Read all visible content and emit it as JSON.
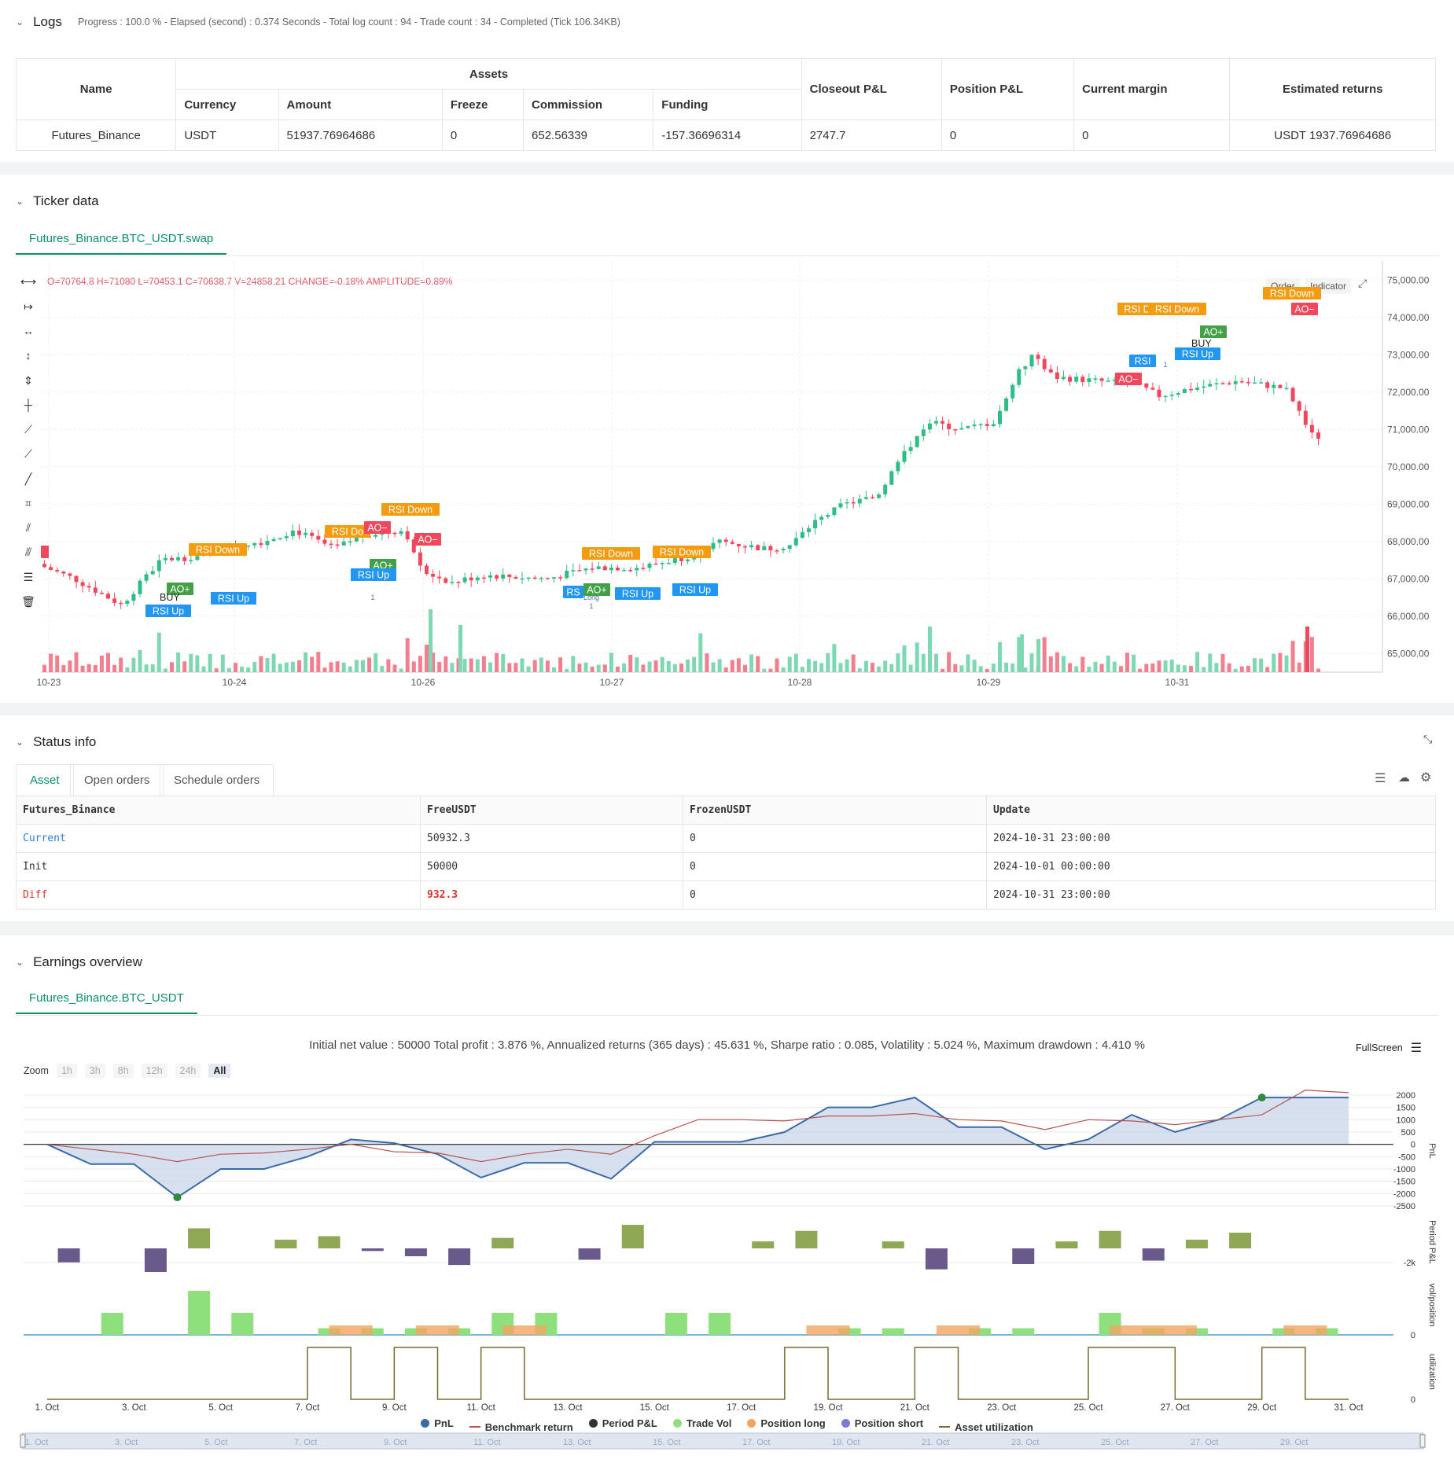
{
  "logs": {
    "title": "Logs",
    "summary": "Progress : 100.0 % - Elapsed (second) : 0.374  Seconds - Total log count : 94 - Trade count : 34 - Completed (Tick 106.34KB)",
    "table": {
      "headers": {
        "name": "Name",
        "assets": "Assets",
        "currency": "Currency",
        "amount": "Amount",
        "freeze": "Freeze",
        "commission": "Commission",
        "funding": "Funding",
        "closeout": "Closeout P&L",
        "position": "Position P&L",
        "margin": "Current margin",
        "returns": "Estimated returns"
      },
      "row": {
        "name": "Futures_Binance",
        "currency": "USDT",
        "amount": "51937.76964686",
        "freeze": "0",
        "commission": "652.56339",
        "funding": "-157.36696314",
        "closeout": "2747.7",
        "position": "0",
        "margin": "0",
        "returns": "USDT 1937.76964686"
      }
    }
  },
  "ticker": {
    "title": "Ticker data",
    "tab": "Futures_Binance.BTC_USDT.swap",
    "ohlc": "O=70764.8 H=71080 L=70453.1 C=70638.7 V=24858.21 CHANGE=-0.18% AMPLITUDE=0.89%",
    "buttons": {
      "order": "Order",
      "indicator": "Indicator"
    },
    "price_ticks": [
      "75,000.00",
      "74,000.00",
      "73,000.00",
      "72,000.00",
      "71,000.00",
      "70,000.00",
      "69,000.00",
      "68,000.00",
      "67,000.00",
      "66,000.00",
      "65,000.00"
    ],
    "date_ticks": [
      "10-23",
      "10-24",
      "10-26",
      "10-27",
      "10-28",
      "10-29",
      "10-31"
    ],
    "labels": {
      "rsi_down": "RSI Down",
      "rsi_up": "RSI Up",
      "ao_plus": "AO+",
      "ao_minus": "AO−",
      "buy": "BUY",
      "long": "Long",
      "one": "1",
      "rsi_d": "RSI D",
      "rsi_do": "RSI Do",
      "rsi_up_overlap": "RSI Up",
      "rs": "RS",
      "rsi": "RSI"
    }
  },
  "status": {
    "title": "Status info",
    "tabs": [
      "Asset",
      "Open orders",
      "Schedule orders"
    ],
    "headers": [
      "Futures_Binance",
      "FreeUSDT",
      "FrozenUSDT",
      "Update"
    ],
    "rows": [
      {
        "label": "Current",
        "free": "50932.3",
        "frozen": "0",
        "update": "2024-10-31 23:00:00"
      },
      {
        "label": "Init",
        "free": "50000",
        "frozen": "0",
        "update": "2024-10-01 00:00:00"
      },
      {
        "label": "Diff",
        "free": "932.3",
        "frozen": "0",
        "update": "2024-10-31 23:00:00"
      }
    ]
  },
  "earnings": {
    "title": "Earnings overview",
    "tab": "Futures_Binance.BTC_USDT",
    "summary": "Initial net value : 50000 Total profit : 3.876 %, Annualized returns (365 days) : 45.631 %, Sharpe ratio : 0.085, Volatility : 5.024 %, Maximum drawdown : 4.410 %",
    "fullscreen": "FullScreen",
    "zoom_label": "Zoom",
    "zoom_options": [
      "1h",
      "3h",
      "8h",
      "12h",
      "24h",
      "All"
    ],
    "pnl_ticks": [
      "2000",
      "1500",
      "1000",
      "500",
      "0",
      "-500",
      "-1000",
      "-1500",
      "-2000",
      "-2500"
    ],
    "axis_titles": {
      "pnl": "PnL",
      "period": "Period P&L",
      "vol": "vol/position",
      "util": "utilization"
    },
    "period_tick": "-2k",
    "vol_tick": "0",
    "util_tick": "0",
    "date_ticks": [
      "1. Oct",
      "3. Oct",
      "5. Oct",
      "7. Oct",
      "9. Oct",
      "11. Oct",
      "13. Oct",
      "15. Oct",
      "17. Oct",
      "19. Oct",
      "21. Oct",
      "23. Oct",
      "25. Oct",
      "27. Oct",
      "29. Oct",
      "31. Oct"
    ],
    "nav_ticks": [
      "1. Oct",
      "3. Oct",
      "5. Oct",
      "7. Oct",
      "9. Oct",
      "11. Oct",
      "13. Oct",
      "15. Oct",
      "17. Oct",
      "19. Oct",
      "21. Oct",
      "23. Oct",
      "25. Oct",
      "27. Oct",
      "29. Oct"
    ],
    "legend": [
      {
        "label": "PnL",
        "color": "#3a6aa8",
        "kind": "dot"
      },
      {
        "label": "Benchmark return",
        "color": "#b85450",
        "kind": "line"
      },
      {
        "label": "Period P&L",
        "color": "#333333",
        "kind": "dot"
      },
      {
        "label": "Trade Vol",
        "color": "#8ee07c",
        "kind": "dot"
      },
      {
        "label": "Position long",
        "color": "#f4a460",
        "kind": "dot"
      },
      {
        "label": "Position short",
        "color": "#7b7bdb",
        "kind": "dot"
      },
      {
        "label": "Asset utilization",
        "color": "#7a6a30",
        "kind": "line"
      }
    ]
  },
  "chart_data": [
    {
      "type": "line",
      "title": "",
      "ylabel": "PnL",
      "ylim": [
        -2500,
        2000
      ],
      "x": [
        "1. Oct",
        "2. Oct",
        "3. Oct",
        "4. Oct",
        "5. Oct",
        "6. Oct",
        "7. Oct",
        "8. Oct",
        "9. Oct",
        "10. Oct",
        "11. Oct",
        "12. Oct",
        "13. Oct",
        "14. Oct",
        "15. Oct",
        "16. Oct",
        "17. Oct",
        "18. Oct",
        "19. Oct",
        "20. Oct",
        "21. Oct",
        "22. Oct",
        "23. Oct",
        "24. Oct",
        "25. Oct",
        "26. Oct",
        "27. Oct",
        "28. Oct",
        "29. Oct",
        "30. Oct",
        "31. Oct"
      ],
      "series": [
        {
          "name": "PnL",
          "values": [
            0,
            -800,
            -800,
            -2150,
            -1000,
            -1000,
            -500,
            200,
            50,
            -400,
            -1350,
            -750,
            -750,
            -1400,
            100,
            100,
            100,
            500,
            1500,
            1500,
            1900,
            700,
            700,
            -200,
            200,
            1200,
            500,
            1000,
            1900,
            1900,
            1900
          ]
        },
        {
          "name": "Benchmark return",
          "values": [
            0,
            -200,
            -400,
            -700,
            -400,
            -350,
            -200,
            0,
            -300,
            -350,
            -700,
            -400,
            -200,
            -400,
            350,
            1000,
            1000,
            950,
            1150,
            1150,
            1250,
            1000,
            950,
            600,
            1000,
            950,
            800,
            1000,
            1200,
            2200,
            2100
          ]
        }
      ]
    }
  ]
}
